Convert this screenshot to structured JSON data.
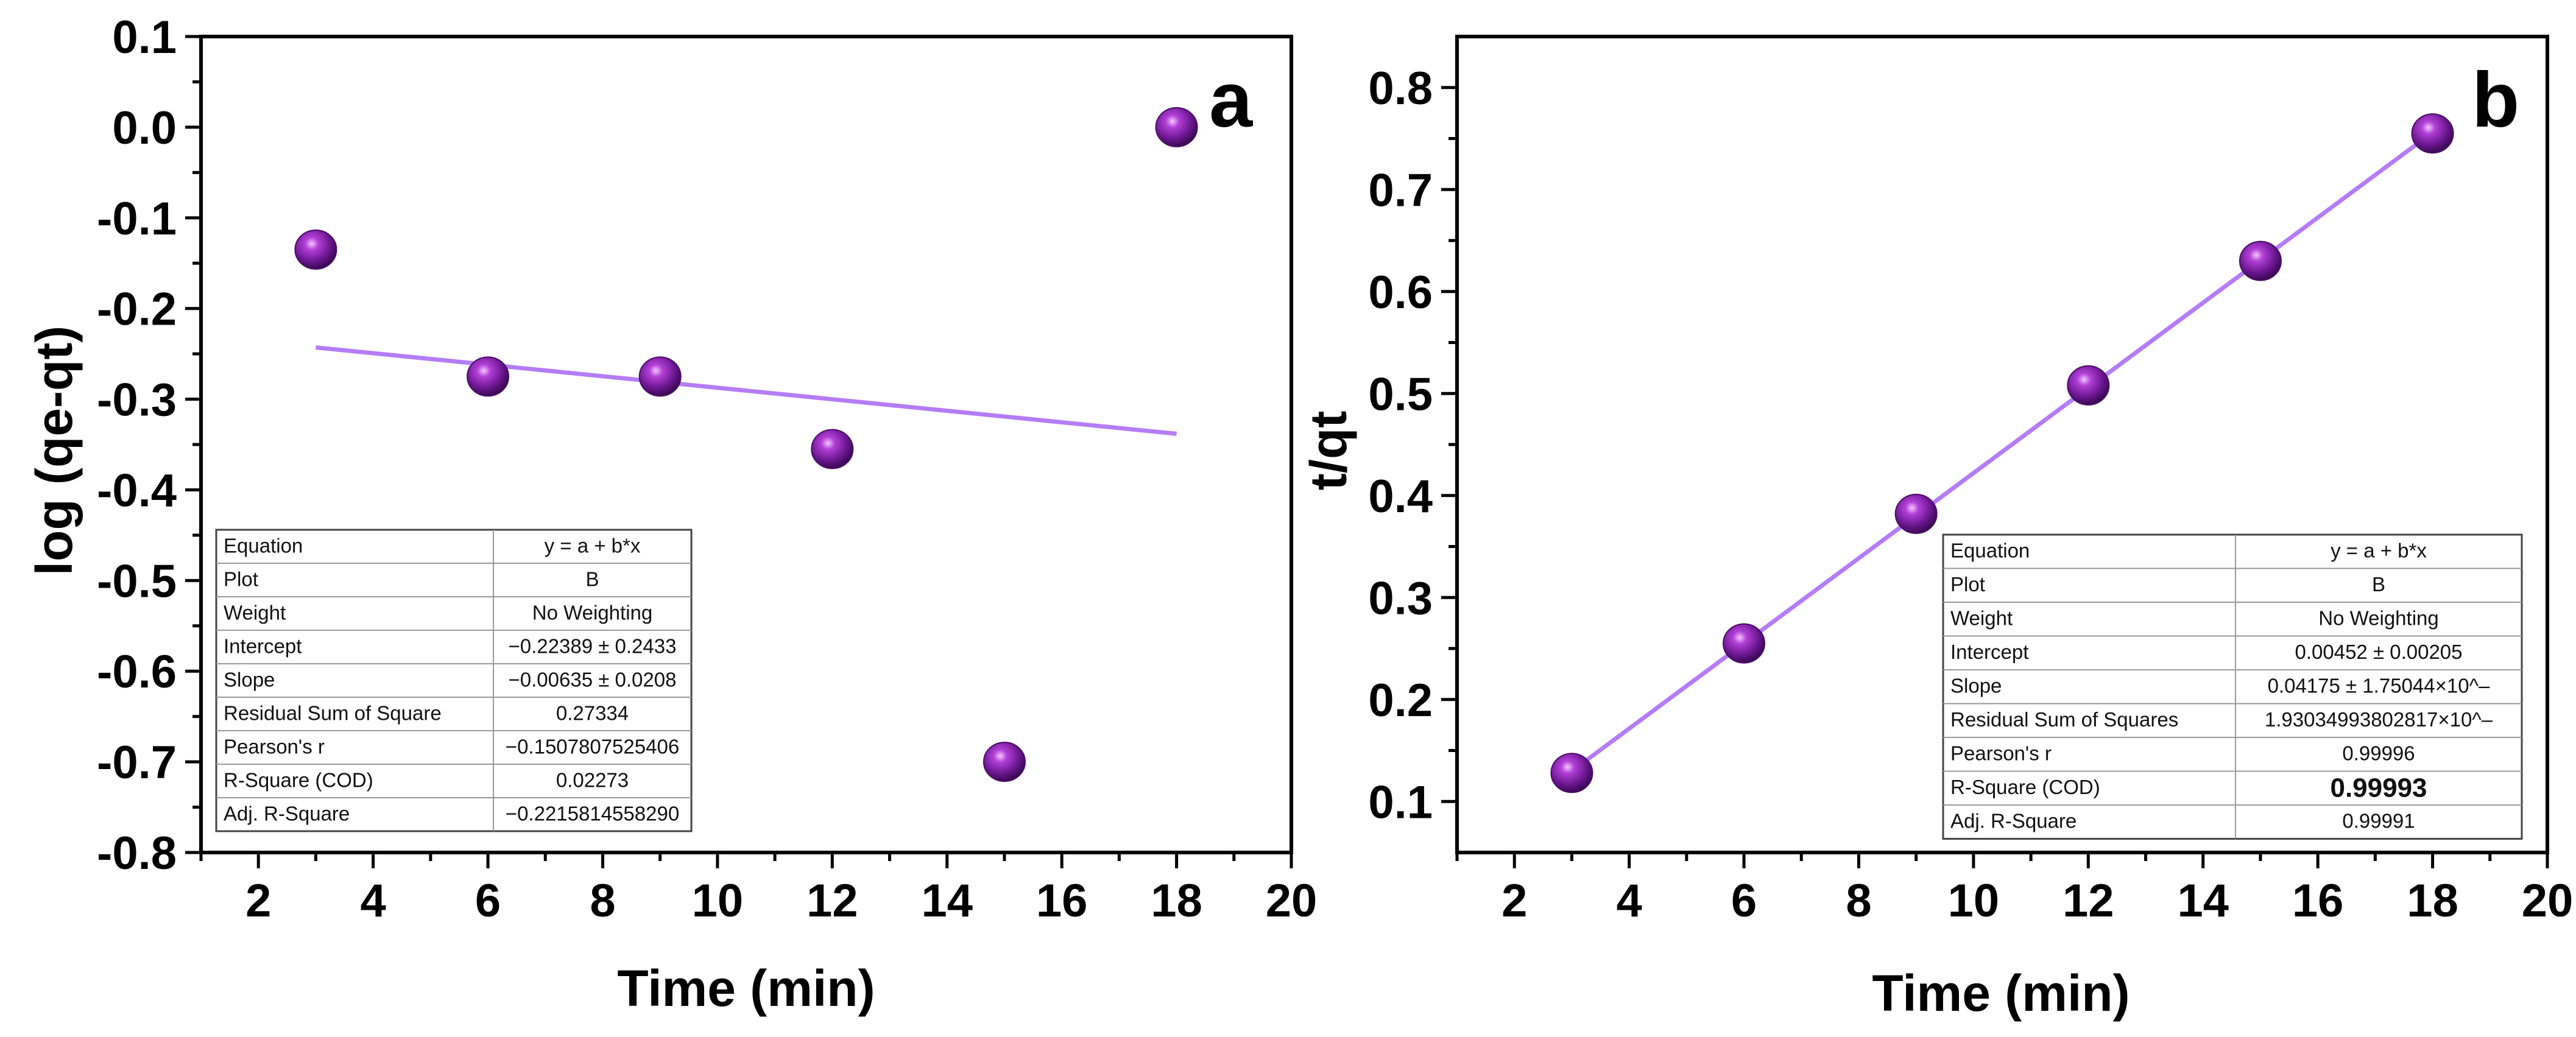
{
  "colors": {
    "marker": "#7b1fa2",
    "fit_line": "#b57cf7",
    "axis": "#000000"
  },
  "chart_data": [
    {
      "panel": "a",
      "type": "scatter",
      "xlabel": "Time (min)",
      "ylabel": "log (qe-qt)",
      "xlim": [
        1,
        20
      ],
      "ylim": [
        -0.8,
        0.1
      ],
      "xticks": [
        "2",
        "4",
        "6",
        "8",
        "10",
        "12",
        "14",
        "16",
        "18",
        "20"
      ],
      "yticks": [
        "0.1",
        "0.0",
        "-0.1",
        "-0.2",
        "-0.3",
        "-0.4",
        "-0.5",
        "-0.6",
        "-0.7",
        "-0.8"
      ],
      "x": [
        3,
        6,
        9,
        12,
        15,
        18
      ],
      "y": [
        -0.135,
        -0.275,
        -0.275,
        -0.355,
        -0.7,
        0.0
      ],
      "fit": {
        "intercept": -0.22389,
        "slope": -0.00635,
        "x_range": [
          3,
          18
        ]
      },
      "stats_table": [
        [
          "Equation",
          "y = a + b*x"
        ],
        [
          "Plot",
          "B"
        ],
        [
          "Weight",
          "No Weighting"
        ],
        [
          "Intercept",
          "−0.22389 ± 0.2433"
        ],
        [
          "Slope",
          "−0.00635 ± 0.0208"
        ],
        [
          "Residual Sum of Square",
          "0.27334"
        ],
        [
          "Pearson's r",
          "−0.1507807525406"
        ],
        [
          "R-Square (COD)",
          "0.02273"
        ],
        [
          "Adj. R-Square",
          "−0.2215814558290"
        ]
      ],
      "bold_row": -1
    },
    {
      "panel": "b",
      "type": "scatter",
      "xlabel": "Time (min)",
      "ylabel": "t/qt",
      "xlim": [
        1,
        20
      ],
      "ylim": [
        0.05,
        0.85
      ],
      "xticks": [
        "2",
        "4",
        "6",
        "8",
        "10",
        "12",
        "14",
        "16",
        "18",
        "20"
      ],
      "yticks": [
        "0.8",
        "0.7",
        "0.6",
        "0.5",
        "0.4",
        "0.3",
        "0.2",
        "0.1"
      ],
      "x": [
        3,
        6,
        9,
        12,
        15,
        18
      ],
      "y": [
        0.128,
        0.255,
        0.382,
        0.508,
        0.63,
        0.755
      ],
      "fit": {
        "intercept": 0.00452,
        "slope": 0.04175,
        "x_range": [
          3,
          18
        ]
      },
      "stats_table": [
        [
          "Equation",
          "y = a + b*x"
        ],
        [
          "Plot",
          "B"
        ],
        [
          "Weight",
          "No Weighting"
        ],
        [
          "Intercept",
          "0.00452 ± 0.00205"
        ],
        [
          "Slope",
          "0.04175 ± 1.75044×10^–"
        ],
        [
          "Residual Sum of Squares",
          "1.93034993802817×10^–"
        ],
        [
          "Pearson's r",
          "0.99996"
        ],
        [
          "R-Square (COD)",
          "0.99993"
        ],
        [
          "Adj. R-Square",
          "0.99991"
        ]
      ],
      "bold_row": 7
    }
  ]
}
